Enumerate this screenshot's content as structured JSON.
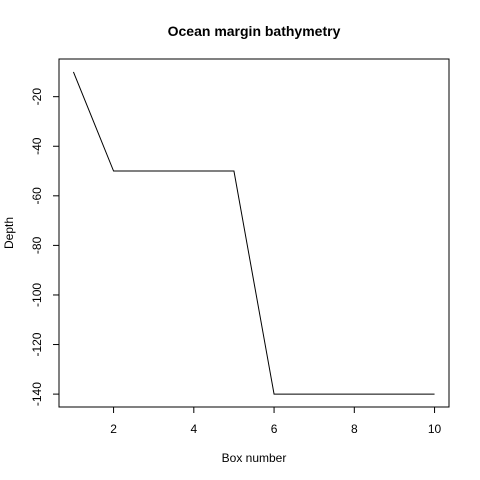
{
  "chart_data": {
    "type": "line",
    "title": "Ocean margin bathymetry",
    "xlabel": "Box number",
    "ylabel": "Depth",
    "x": [
      1,
      2,
      3,
      4,
      5,
      6,
      7,
      8,
      9,
      10
    ],
    "series": [
      {
        "values": [
          -10,
          -50,
          -50,
          -50,
          -50,
          -140,
          -140,
          -140,
          -140,
          -140
        ],
        "color": "#000000"
      }
    ],
    "xlim": [
      0.64,
      10.36
    ],
    "ylim": [
      -145.2,
      -4.8
    ],
    "xticks": [
      2,
      4,
      6,
      8,
      10
    ],
    "yticks": [
      -20,
      -40,
      -60,
      -80,
      -100,
      -120,
      -140
    ],
    "grid": false,
    "legend": "none"
  }
}
